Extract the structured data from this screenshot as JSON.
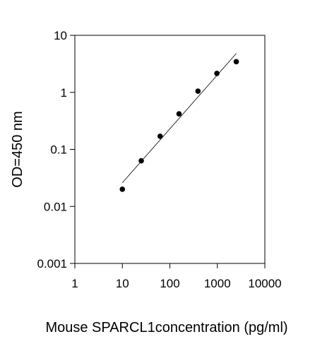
{
  "chart_data": {
    "type": "scatter",
    "title": "",
    "xlabel": "Mouse SPARCL1concentration (pg/ml)",
    "ylabel": "OD=450 nm",
    "x_scale": "log",
    "y_scale": "log",
    "xlim": [
      1,
      10000
    ],
    "ylim": [
      0.001,
      10
    ],
    "x_ticks": [
      1,
      10,
      100,
      1000,
      10000
    ],
    "x_tick_labels": [
      "1",
      "10",
      "100",
      "1000",
      "10000"
    ],
    "y_ticks": [
      0.001,
      0.01,
      0.1,
      1,
      10
    ],
    "y_tick_labels": [
      "0.001",
      "0.01",
      "0.1",
      "1",
      "10"
    ],
    "grid": false,
    "legend": "none",
    "series": [
      {
        "x": [
          10,
          25,
          62.5,
          156,
          391,
          977,
          2500
        ],
        "y": [
          0.02,
          0.063,
          0.17,
          0.42,
          1.05,
          2.15,
          3.45
        ]
      }
    ],
    "fit_line": {
      "x": [
        10,
        2500
      ],
      "y": [
        0.026,
        4.8
      ]
    },
    "colors": {
      "marker": "#000000",
      "fit_line": "#000000",
      "axes": "#000000"
    }
  }
}
